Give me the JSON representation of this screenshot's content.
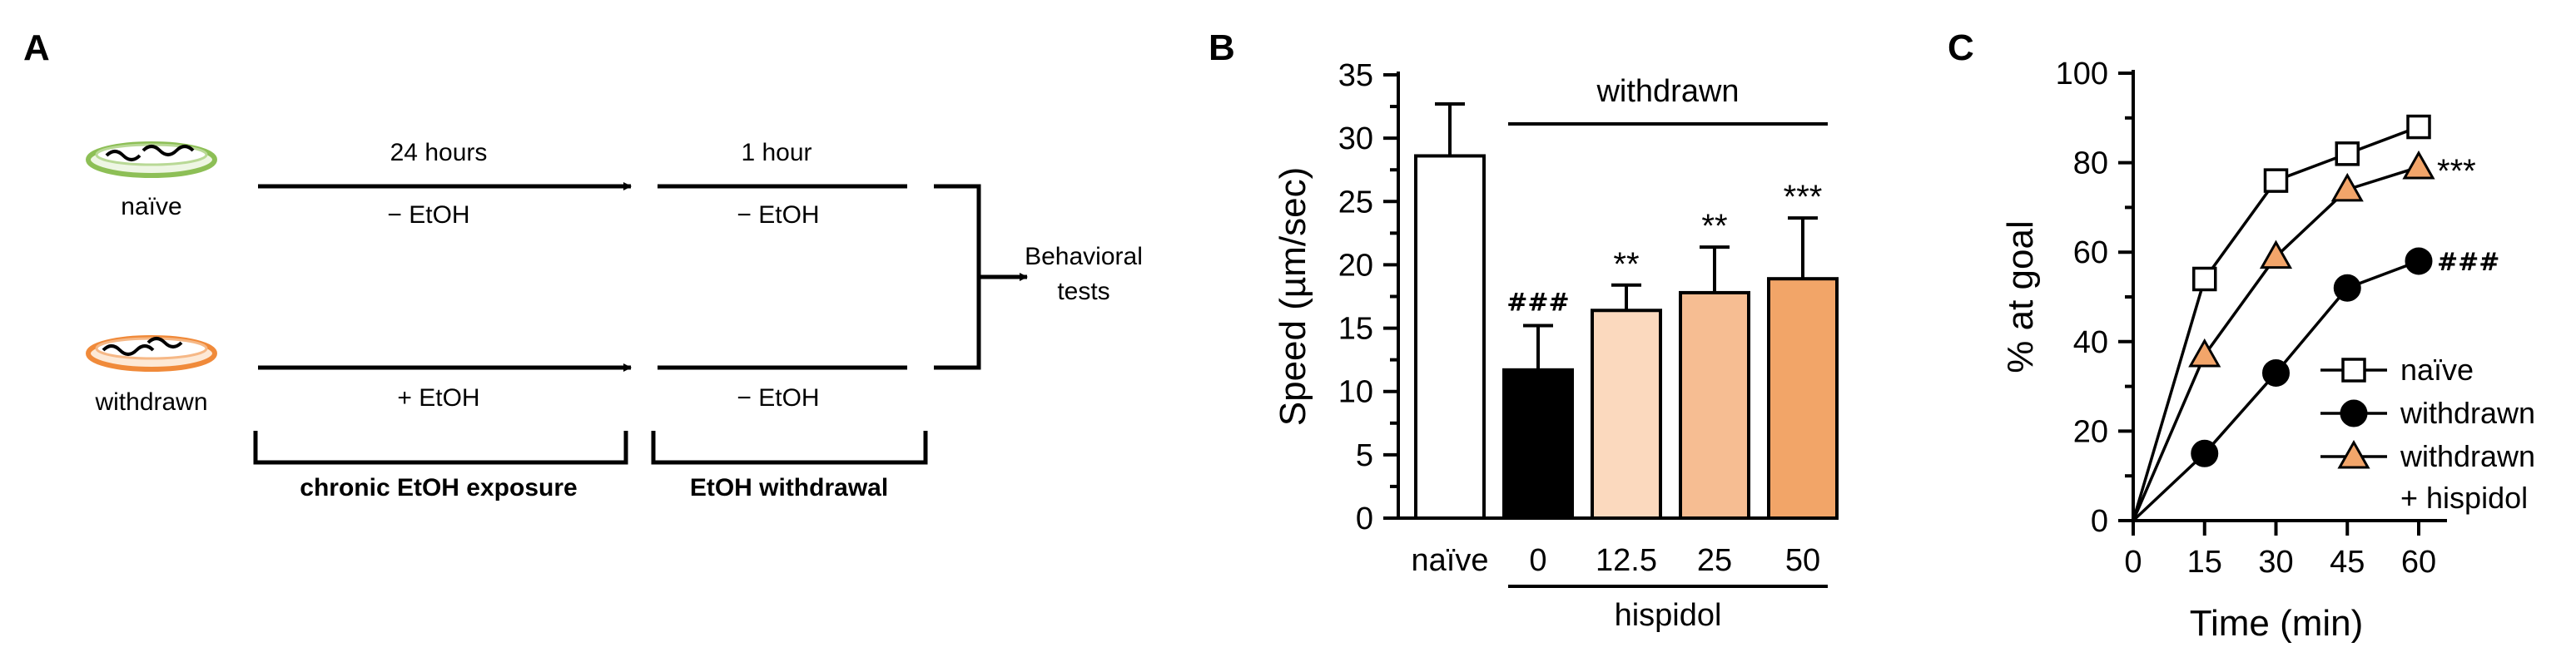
{
  "panel_a": {
    "letter": "A",
    "groups": [
      {
        "id": "naive",
        "label": "naïve",
        "plate_color": "#8dbf56",
        "before": "− EtOH",
        "after": "− EtOH"
      },
      {
        "id": "withdrawn",
        "label": "withdrawn",
        "plate_color": "#f08a3a",
        "before": "+ EtOH",
        "after": "− EtOH"
      }
    ],
    "step1_label": "24 hours",
    "step2_label": "1 hour",
    "outcome": [
      "Behavioral",
      "tests"
    ],
    "bracket1_label": "chronic EtOH exposure",
    "bracket2_label": "EtOH withdrawal"
  },
  "chart_data": [
    {
      "panel": "B",
      "type": "bar",
      "ylabel": "Speed (µm/sec)",
      "ylim": [
        0,
        35
      ],
      "yticks": [
        0,
        5,
        10,
        15,
        20,
        25,
        30,
        35
      ],
      "categories": [
        "naïve",
        "0",
        "12.5",
        "25",
        "50"
      ],
      "values": [
        28.6,
        11.7,
        16.4,
        17.8,
        18.9
      ],
      "errors": [
        4.1,
        3.5,
        2.0,
        3.6,
        4.8
      ],
      "colors": [
        "#ffffff",
        "#000000",
        "#fbd9be",
        "#f6bd92",
        "#f2a568"
      ],
      "annotations": [
        "",
        "###",
        "**",
        "**",
        "***"
      ],
      "top_bracket_label": "withdrawn",
      "bottom_bracket_label": "hispidol"
    },
    {
      "panel": "C",
      "type": "line",
      "xlabel": "Time (min)",
      "ylabel": "% at goal",
      "x": [
        0,
        15,
        30,
        45,
        60
      ],
      "xlim": [
        0,
        60
      ],
      "ylim": [
        0,
        100
      ],
      "xticks": [
        0,
        15,
        30,
        45,
        60
      ],
      "yticks": [
        0,
        20,
        40,
        60,
        80,
        100
      ],
      "legend_position": "bottom-right",
      "series": [
        {
          "name": "naïve",
          "values": [
            0,
            54,
            76,
            82,
            88
          ],
          "marker": "square",
          "fill": "#ffffff",
          "annotation": ""
        },
        {
          "name": "withdrawn",
          "values": [
            0,
            15,
            33,
            52,
            58
          ],
          "marker": "circle",
          "fill": "#000000",
          "annotation": "###"
        },
        {
          "name": "withdrawn\n+ hispidol",
          "values": [
            0,
            37,
            59,
            74,
            79
          ],
          "marker": "triangle",
          "fill": "#f2a56a",
          "annotation": "***"
        }
      ]
    }
  ]
}
